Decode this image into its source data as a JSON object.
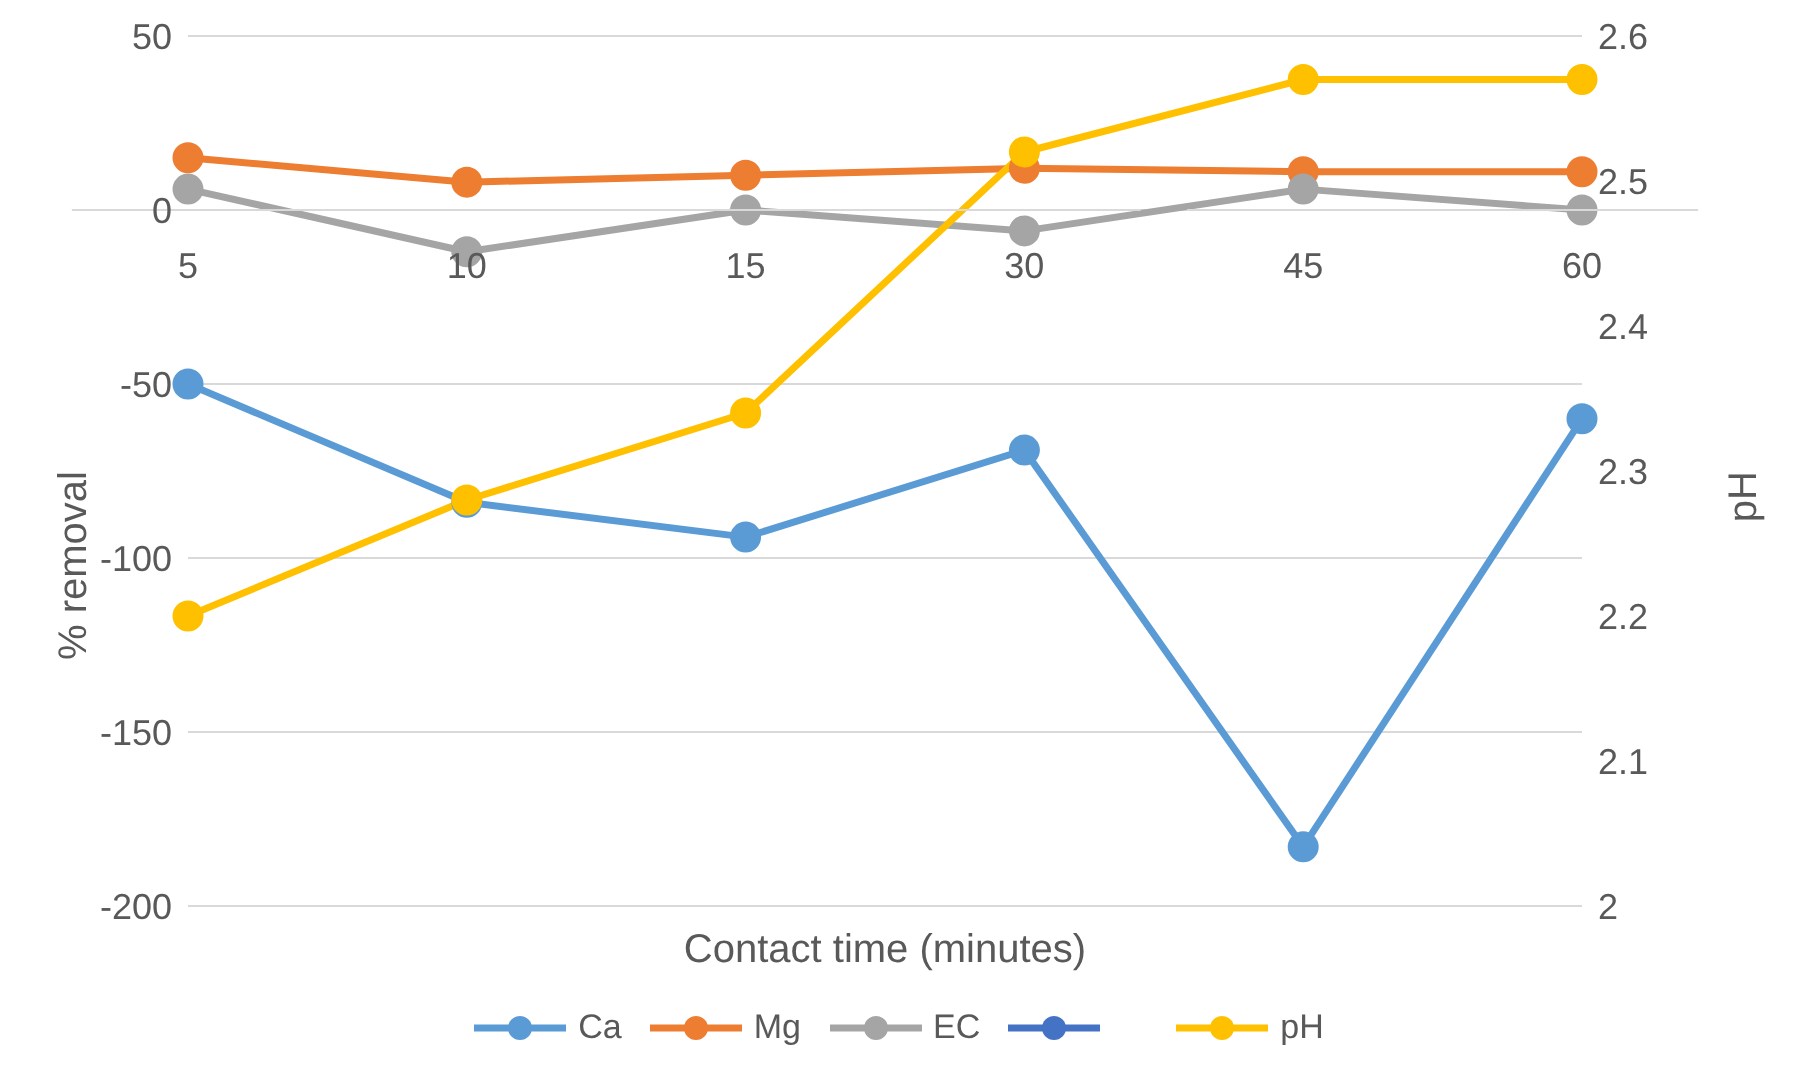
{
  "chart_data": {
    "type": "line",
    "xlabel": "Contact time (minutes)",
    "ylabel": "% removal",
    "y2label": "pH",
    "categories": [
      "5",
      "10",
      "15",
      "30",
      "45",
      "60"
    ],
    "series": [
      {
        "name": "Ca",
        "color": "#5b9bd5",
        "values": [
          -50,
          -84,
          -94,
          -69,
          -183,
          -60
        ]
      },
      {
        "name": "Mg",
        "color": "#ed7d31",
        "values": [
          15,
          8,
          10,
          12,
          11,
          11
        ]
      },
      {
        "name": "EC",
        "color": "#a5a5a5",
        "values": [
          6,
          -12,
          0,
          -6,
          6,
          0
        ]
      },
      {
        "color": "#4472c4",
        "values": [
          null,
          null,
          null,
          null,
          null,
          null
        ]
      },
      {
        "name": "pH",
        "color": "#ffc000",
        "axis": "y2",
        "values": [
          2.2,
          2.28,
          2.34,
          2.52,
          2.57,
          2.57
        ]
      }
    ],
    "ylim": [
      -200,
      50
    ],
    "yticks": [
      -200,
      -150,
      -100,
      -50,
      0,
      50
    ],
    "y2lim": [
      2,
      2.6
    ],
    "y2ticks": [
      2,
      2.1,
      2.2,
      2.3,
      2.4,
      2.5,
      2.6
    ],
    "grid": "y",
    "legend": "bottom",
    "marker": "circle",
    "line_style": "solid"
  }
}
